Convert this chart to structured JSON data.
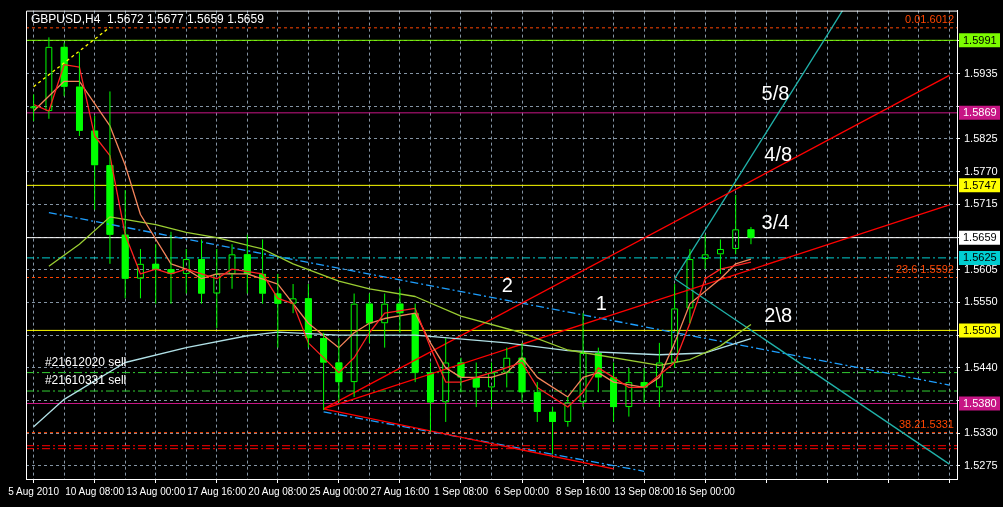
{
  "chart_data": {
    "type": "candlestick",
    "title": "GBPUSD,H4  1.5672 1.5677 1.5659 1.5659",
    "color": "#00ff00",
    "categories": [
      "5 Aug 2010",
      null,
      null,
      null,
      "10 Aug 08:00",
      null,
      null,
      null,
      "13 Aug 00:00",
      null,
      null,
      null,
      "17 Aug 16:00",
      null,
      null,
      null,
      "20 Aug 08:00",
      null,
      null,
      null,
      "25 Aug 00:00",
      null,
      null,
      null,
      "27 Aug 16:00",
      null,
      null,
      null,
      "1 Sep 08:00",
      null,
      null,
      null,
      "6 Sep 00:00",
      null,
      null,
      null,
      "8 Sep 16:00",
      null,
      null,
      null,
      "13 Sep 08:00",
      null,
      null,
      null,
      "16 Sep 00:00",
      null,
      null,
      null,
      null,
      null,
      null,
      null,
      null,
      null,
      null,
      null,
      null,
      null,
      null,
      null,
      null
    ],
    "ohlc": [
      [
        1.588,
        1.59,
        1.5855,
        1.588
      ],
      [
        1.5872,
        1.5996,
        1.5859,
        1.598
      ],
      [
        1.598,
        1.5987,
        1.5897,
        1.5913
      ],
      [
        1.5913,
        1.5971,
        1.583,
        1.5839
      ],
      [
        1.5839,
        1.5864,
        1.5706,
        1.5781
      ],
      [
        1.5781,
        1.5905,
        1.5615,
        1.5664
      ],
      [
        1.5664,
        1.5739,
        1.5557,
        1.559
      ],
      [
        1.559,
        1.564,
        1.5557,
        1.5615
      ],
      [
        1.5615,
        1.5648,
        1.5548,
        1.5606
      ],
      [
        1.5606,
        1.5669,
        1.5548,
        1.5598
      ],
      [
        1.5598,
        1.564,
        1.5565,
        1.5623
      ],
      [
        1.5623,
        1.5656,
        1.5548,
        1.5565
      ],
      [
        1.5565,
        1.564,
        1.5507,
        1.5598
      ],
      [
        1.5598,
        1.5648,
        1.5573,
        1.5631
      ],
      [
        1.5631,
        1.5664,
        1.5565,
        1.5598
      ],
      [
        1.5598,
        1.5656,
        1.5548,
        1.5565
      ],
      [
        1.5565,
        1.5598,
        1.5474,
        1.5548
      ],
      [
        1.5548,
        1.5581,
        1.5532,
        1.5557
      ],
      [
        1.5557,
        1.5581,
        1.5474,
        1.549
      ],
      [
        1.549,
        1.5499,
        1.5369,
        1.5449
      ],
      [
        1.5449,
        1.549,
        1.5382,
        1.5416
      ],
      [
        1.5416,
        1.5565,
        1.5391,
        1.5548
      ],
      [
        1.5548,
        1.5565,
        1.5482,
        1.5515
      ],
      [
        1.5515,
        1.5565,
        1.5474,
        1.5548
      ],
      [
        1.5548,
        1.5573,
        1.5499,
        1.5532
      ],
      [
        1.5532,
        1.5548,
        1.5416,
        1.5432
      ],
      [
        1.5432,
        1.5449,
        1.5333,
        1.5382
      ],
      [
        1.5382,
        1.549,
        1.5349,
        1.5449
      ],
      [
        1.5449,
        1.5457,
        1.5399,
        1.5424
      ],
      [
        1.5424,
        1.5449,
        1.5374,
        1.5407
      ],
      [
        1.5407,
        1.5449,
        1.5374,
        1.5432
      ],
      [
        1.5432,
        1.5474,
        1.5407,
        1.5457
      ],
      [
        1.5457,
        1.5482,
        1.5382,
        1.5399
      ],
      [
        1.5399,
        1.5416,
        1.5349,
        1.5366
      ],
      [
        1.5366,
        1.5374,
        1.5295,
        1.5349
      ],
      [
        1.5349,
        1.5391,
        1.5341,
        1.5382
      ],
      [
        1.5382,
        1.5532,
        1.5374,
        1.5465
      ],
      [
        1.5465,
        1.5474,
        1.5399,
        1.5424
      ],
      [
        1.5424,
        1.5449,
        1.5349,
        1.5374
      ],
      [
        1.5374,
        1.544,
        1.5358,
        1.5416
      ],
      [
        1.5416,
        1.544,
        1.5382,
        1.5407
      ],
      [
        1.5407,
        1.5482,
        1.5374,
        1.5449
      ],
      [
        1.5449,
        1.5581,
        1.544,
        1.554
      ],
      [
        1.554,
        1.564,
        1.5515,
        1.5623
      ],
      [
        1.5623,
        1.5664,
        1.5606,
        1.5631
      ],
      [
        1.5631,
        1.5656,
        1.5598,
        1.564
      ],
      [
        1.564,
        1.5731,
        1.5631,
        1.5673
      ],
      [
        1.5673,
        1.5677,
        1.5648,
        1.5659
      ],
      null,
      null,
      null,
      null,
      null,
      null,
      null,
      null,
      null,
      null,
      null,
      null,
      null
    ],
    "series": [
      {
        "type": "line",
        "color": "#ff2020",
        "line_style": "solid",
        "values": [
          1.5883,
          1.5872,
          1.595,
          1.5946,
          1.583,
          1.5797,
          1.5664,
          1.5598,
          1.5606,
          1.5598,
          1.5606,
          null,
          1.559,
          1.5606,
          null,
          1.5598,
          1.5557,
          1.5548,
          1.5482,
          null,
          1.5432,
          1.5457,
          1.5499,
          1.5532,
          null,
          1.554,
          1.5474,
          1.5416,
          1.5416,
          null,
          1.5432,
          null,
          1.5449,
          1.5407,
          null,
          1.5374,
          1.5399,
          1.544,
          1.5424,
          1.5407,
          1.5407,
          null,
          1.5449,
          1.5515,
          1.559,
          1.5606,
          null,
          1.5618,
          null,
          null,
          null,
          null,
          null,
          null,
          null,
          null,
          null,
          null,
          null,
          null,
          null
        ]
      },
      {
        "type": "line",
        "color": "#f4845a",
        "line_style": "solid",
        "values": [
          1.5872,
          null,
          1.5922,
          1.5922,
          null,
          1.5847,
          1.5781,
          1.5698,
          null,
          1.5615,
          1.5606,
          1.559,
          1.5598,
          null,
          1.5598,
          null,
          1.5581,
          1.5548,
          1.5515,
          null,
          1.5474,
          1.5499,
          1.5515,
          1.5523,
          null,
          1.5532,
          1.5482,
          1.544,
          1.5424,
          null,
          1.5424,
          1.5432,
          1.5457,
          1.5424,
          null,
          1.5391,
          1.5424,
          1.5432,
          1.5416,
          null,
          1.5407,
          1.5424,
          1.5482,
          1.5548,
          null,
          1.559,
          1.5615,
          1.5623,
          null,
          null,
          null,
          null,
          null,
          null,
          null,
          null,
          null,
          null,
          null,
          null,
          null
        ]
      },
      {
        "type": "line",
        "color": "#9acd32",
        "line_style": "solid",
        "values": [
          null,
          1.5611,
          null,
          1.5648,
          null,
          1.5694,
          null,
          null,
          1.5681,
          null,
          1.5668,
          null,
          1.5659,
          null,
          null,
          1.564,
          null,
          1.5615,
          null,
          null,
          1.5586,
          null,
          1.5573,
          null,
          null,
          1.556,
          null,
          null,
          1.5527,
          null,
          null,
          null,
          1.5499,
          null,
          null,
          1.547,
          null,
          null,
          null,
          null,
          null,
          1.5444,
          null,
          1.5454,
          null,
          1.5477,
          null,
          1.5513,
          null,
          null,
          null,
          null,
          null,
          null,
          null,
          null,
          null,
          null,
          null,
          null,
          null
        ]
      },
      {
        "type": "line",
        "color": "#b0e0e6",
        "line_style": "solid",
        "values": [
          1.5341,
          null,
          1.5387,
          null,
          null,
          null,
          1.5449,
          null,
          null,
          null,
          1.5474,
          null,
          null,
          null,
          1.5494,
          null,
          1.55,
          null,
          null,
          null,
          1.5495,
          null,
          null,
          null,
          null,
          1.5495,
          null,
          null,
          null,
          null,
          null,
          1.5482,
          null,
          null,
          null,
          1.5469,
          null,
          null,
          null,
          null,
          null,
          1.5462,
          null,
          null,
          1.5465,
          null,
          null,
          1.5489,
          null,
          null,
          null,
          null,
          null,
          null,
          null,
          null,
          null,
          null,
          null,
          null,
          null
        ]
      },
      {
        "type": "line",
        "color": "#ff0000",
        "line_style": "solid",
        "values": [
          null,
          null,
          null,
          null,
          null,
          null,
          null,
          null,
          null,
          null,
          null,
          null,
          null,
          null,
          null,
          null,
          null,
          null,
          null,
          1.5371,
          null,
          null,
          null,
          null,
          null,
          null,
          null,
          null,
          null,
          null,
          null,
          null,
          null,
          null,
          null,
          null,
          null,
          null,
          null,
          null,
          null,
          null,
          null,
          null,
          null,
          null,
          null,
          null,
          null,
          null,
          null,
          null,
          null,
          null,
          null,
          null,
          null,
          null,
          null,
          null,
          1.5932
        ]
      },
      {
        "type": "line",
        "color": "#ff0000",
        "line_style": "solid",
        "values": [
          null,
          null,
          null,
          null,
          null,
          null,
          null,
          null,
          null,
          null,
          null,
          null,
          null,
          null,
          null,
          null,
          null,
          null,
          null,
          1.5371,
          null,
          null,
          null,
          null,
          null,
          null,
          null,
          null,
          null,
          null,
          null,
          null,
          null,
          null,
          null,
          null,
          null,
          null,
          null,
          null,
          null,
          null,
          null,
          null,
          null,
          null,
          null,
          null,
          null,
          null,
          null,
          null,
          null,
          null,
          null,
          null,
          null,
          null,
          null,
          null,
          1.5714
        ]
      },
      {
        "type": "line",
        "color": "#ff0000",
        "line_style": "solid",
        "values": [
          null,
          null,
          null,
          null,
          null,
          null,
          null,
          null,
          null,
          null,
          null,
          null,
          null,
          null,
          null,
          null,
          null,
          null,
          null,
          1.5371,
          null,
          null,
          null,
          null,
          null,
          null,
          null,
          null,
          null,
          null,
          null,
          null,
          null,
          null,
          null,
          null,
          null,
          null,
          1.527,
          null,
          null,
          null,
          null,
          null,
          null,
          null,
          null,
          null,
          null,
          null,
          null,
          null,
          null,
          null,
          null,
          null,
          null,
          null,
          null,
          null,
          null
        ]
      },
      {
        "type": "line",
        "color": "#1e9fff",
        "line_style": "dashed",
        "values": [
          null,
          1.5701,
          null,
          null,
          null,
          null,
          null,
          null,
          null,
          null,
          null,
          null,
          null,
          null,
          null,
          null,
          null,
          null,
          null,
          null,
          null,
          null,
          null,
          null,
          null,
          null,
          null,
          null,
          null,
          null,
          null,
          null,
          null,
          null,
          null,
          null,
          null,
          null,
          null,
          null,
          null,
          null,
          null,
          null,
          null,
          null,
          null,
          null,
          null,
          null,
          null,
          null,
          null,
          null,
          null,
          null,
          null,
          null,
          null,
          null,
          1.5411
        ]
      },
      {
        "type": "line",
        "color": "#1e9fff",
        "line_style": "dashed",
        "values": [
          null,
          null,
          null,
          null,
          null,
          null,
          null,
          null,
          null,
          null,
          null,
          null,
          null,
          null,
          null,
          null,
          null,
          null,
          null,
          1.5366,
          null,
          null,
          null,
          null,
          null,
          null,
          null,
          null,
          null,
          null,
          null,
          null,
          null,
          null,
          null,
          null,
          null,
          null,
          null,
          null,
          1.5266,
          null,
          null,
          null,
          null,
          null,
          null,
          null,
          null,
          null,
          null,
          null,
          null,
          null,
          null,
          null,
          null,
          null,
          null,
          null,
          null
        ]
      },
      {
        "type": "line",
        "color": "#20b2aa",
        "line_style": "solid",
        "values": [
          null,
          null,
          null,
          null,
          null,
          null,
          null,
          null,
          null,
          null,
          null,
          null,
          null,
          null,
          null,
          null,
          null,
          null,
          null,
          null,
          null,
          null,
          null,
          null,
          null,
          null,
          null,
          null,
          null,
          null,
          null,
          null,
          null,
          null,
          null,
          null,
          null,
          null,
          null,
          null,
          null,
          null,
          1.559,
          null,
          null,
          null,
          null,
          null,
          null,
          null,
          null,
          null,
          null,
          1.6041,
          null,
          null,
          null,
          null,
          null,
          null,
          null
        ]
      },
      {
        "type": "line",
        "color": "#20b2aa",
        "line_style": "solid",
        "values": [
          null,
          null,
          null,
          null,
          null,
          null,
          null,
          null,
          null,
          null,
          null,
          null,
          null,
          null,
          null,
          null,
          null,
          null,
          null,
          null,
          null,
          null,
          null,
          null,
          null,
          null,
          null,
          null,
          null,
          null,
          null,
          null,
          null,
          null,
          null,
          null,
          null,
          null,
          null,
          null,
          null,
          null,
          1.559,
          null,
          null,
          null,
          null,
          null,
          null,
          null,
          null,
          null,
          null,
          null,
          null,
          null,
          null,
          null,
          null,
          null,
          1.5278
        ]
      },
      {
        "type": "line",
        "color": "#ffff00",
        "line_style": "dotted",
        "values": [
          1.5913,
          null,
          null,
          null,
          null,
          1.6013,
          null,
          null,
          null,
          null,
          null,
          null,
          null,
          null,
          null,
          null,
          null,
          null,
          null,
          null,
          null,
          null,
          null,
          null,
          null,
          null,
          null,
          null,
          null,
          null,
          null,
          null,
          null,
          null,
          null,
          null,
          null,
          null,
          null,
          null,
          null,
          null,
          null,
          null,
          null,
          null,
          null,
          null,
          null,
          null,
          null,
          null,
          null,
          null,
          null,
          null,
          null,
          null,
          null,
          null,
          null
        ]
      }
    ],
    "ylim": [
      1.5253,
      1.6041
    ],
    "yticks": [
      1.5275,
      {
        "value": 1.533,
        "label": "1.5330"
      },
      {
        "value": 1.5385,
        "label": null
      },
      {
        "value": 1.544,
        "label": "1.5440"
      },
      {
        "value": 1.5495,
        "label": null
      },
      {
        "value": 1.555,
        "label": "1.5550"
      },
      1.5605,
      {
        "value": 1.566,
        "label": null
      },
      1.5715,
      {
        "value": 1.577,
        "label": "1.5770"
      },
      1.5825,
      {
        "value": 1.588,
        "label": null
      },
      1.5935,
      {
        "value": 1.599,
        "label": null
      }
    ],
    "grid": true,
    "ref_lines": [
      {
        "axis": "y",
        "value": 1.6012,
        "label": "0.01.6012",
        "color": "#ff4500",
        "line_style": "dotted"
      },
      {
        "axis": "y",
        "value": 1.5991,
        "label": "1.5991",
        "color": "#7cfc00",
        "line_style": "solid"
      },
      {
        "axis": "y",
        "value": 1.5869,
        "label": "1.5869",
        "color": "#c71585",
        "line_style": "solid"
      },
      {
        "axis": "y",
        "value": 1.5747,
        "label": "1.5747",
        "color": "#ffff00",
        "line_style": "solid"
      },
      {
        "axis": "y",
        "value": 1.5659,
        "label": "1.5659",
        "color": "#ffffff",
        "line_style": "solid"
      },
      {
        "axis": "y",
        "value": 1.5625,
        "label": "1.5625",
        "color": "#00ced1",
        "line_style": "dashed"
      },
      {
        "axis": "y",
        "value": 1.5592,
        "label": "23.6 1.5592",
        "color": "#ff4500",
        "line_style": "dotted"
      },
      {
        "axis": "y",
        "value": 1.5503,
        "label": "1.5503",
        "color": "#ffff00",
        "line_style": "solid"
      },
      {
        "axis": "y",
        "value": 1.5432,
        "color": "#32cd32",
        "line_style": "dashed"
      },
      {
        "axis": "y",
        "value": 1.5401,
        "color": "#32cd32",
        "line_style": "dashed"
      },
      {
        "axis": "y",
        "value": 1.538,
        "label": "1.5380",
        "color": "#c71585",
        "line_style": "solid"
      },
      {
        "axis": "y",
        "value": 1.5331,
        "label": "38.21.5331",
        "color": "#ff4500",
        "line_style": "dotted"
      },
      {
        "axis": "y",
        "value": 1.5309,
        "color": "#ff0000",
        "line_style": "dashed"
      },
      {
        "axis": "y",
        "value": 1.5304,
        "color": "#ff0000",
        "line_style": "dashed"
      }
    ],
    "annotations": [
      {
        "text": "#21612020 sell",
        "y": 1.5432
      },
      {
        "text": "#21610331 sell",
        "y": 1.5401
      },
      "5/8",
      {
        "text": "4/8",
        "y": 1.5774
      },
      {
        "text": "3/4",
        "y": 1.5659
      },
      {
        "text": "2\\8",
        "y": 1.5503
      },
      {
        "text": "2",
        "y": 1.5553
      },
      {
        "text": "1",
        "y": 1.5523
      }
    ]
  }
}
